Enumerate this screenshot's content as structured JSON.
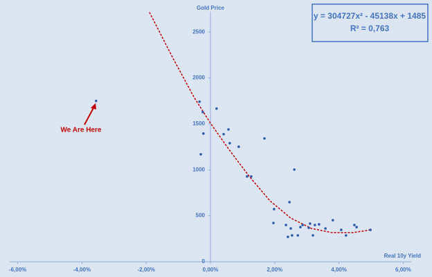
{
  "chart_data": {
    "type": "scatter",
    "y_axis_title": "Gold Price",
    "x_axis_title": "Real 10y Yield",
    "equation": "y = 304727x² - 45138x + 1485",
    "r_squared": "R² = 0,763",
    "annotation": "We Are Here",
    "xlim": [
      -0.0625,
      0.0625
    ],
    "ylim": [
      0,
      2720
    ],
    "xticks": [
      {
        "value": -0.06,
        "label": "-6,00%"
      },
      {
        "value": -0.04,
        "label": "-4,00%"
      },
      {
        "value": -0.02,
        "label": "-2,00%"
      },
      {
        "value": 0,
        "label": "0,00%"
      },
      {
        "value": 0.02,
        "label": "2,00%"
      },
      {
        "value": 0.04,
        "label": "4,00%"
      },
      {
        "value": 0.06,
        "label": "6,00%"
      }
    ],
    "yticks": [
      0,
      500,
      1000,
      1500,
      2000,
      2500
    ],
    "color": "#2e5aa8",
    "x": [
      -0.0356,
      -0.0034,
      -0.0024,
      -0.0022,
      -0.003,
      0.0019,
      0.0041,
      0.0056,
      0.006,
      0.0088,
      0.0168,
      0.0114,
      0.0127,
      0.0261,
      0.0198,
      0.0196,
      0.0246,
      0.0235,
      0.025,
      0.0241,
      0.0254,
      0.0272,
      0.028,
      0.0287,
      0.0306,
      0.031,
      0.0319,
      0.0325,
      0.0338,
      0.0358,
      0.0381,
      0.0407,
      0.0422,
      0.0448,
      0.0455,
      0.0498
    ],
    "y": [
      1750,
      1742,
      1629,
      1395,
      1169,
      1667,
      1388,
      1440,
      1290,
      1252,
      1342,
      928,
      928,
      1003,
      573,
      422,
      649,
      400,
      362,
      271,
      287,
      287,
      377,
      400,
      370,
      415,
      287,
      400,
      407,
      362,
      452,
      347,
      287,
      400,
      377,
      347
    ],
    "trendline": {
      "color": "#c00000",
      "x": [
        -0.019,
        -0.0116,
        -0.0052,
        0,
        0.0056,
        0.0121,
        0.0185,
        0.025,
        0.0315,
        0.0379,
        0.0444,
        0.0498
      ],
      "y": [
        2715,
        2210,
        1795,
        1508,
        1229,
        928,
        664,
        475,
        362,
        317,
        317,
        347
      ]
    }
  }
}
